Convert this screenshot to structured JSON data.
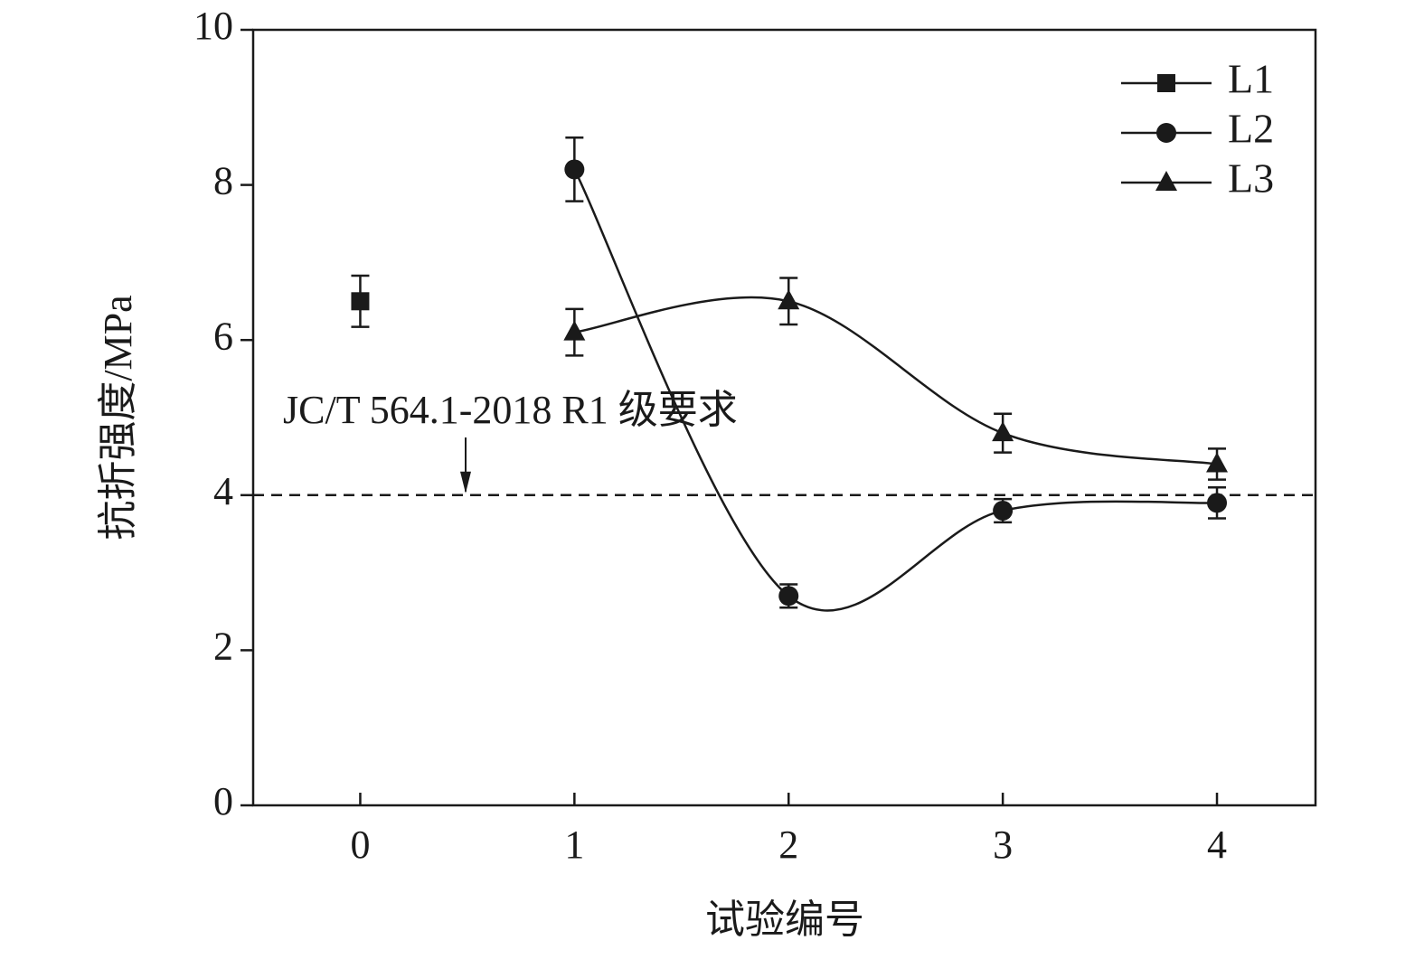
{
  "chart_data": {
    "type": "line",
    "x_label": "试验编号",
    "y_label": "抗折强度/MPa",
    "x": [
      0,
      1,
      2,
      3,
      4
    ],
    "series": [
      {
        "name": "L1",
        "color": "#1a1a1a",
        "marker": "square",
        "values": [
          6.5,
          null,
          null,
          null,
          null
        ],
        "errors": [
          0.33,
          null,
          null,
          null,
          null
        ]
      },
      {
        "name": "L2",
        "color": "#1a1a1a",
        "marker": "circle",
        "values": [
          null,
          8.2,
          2.7,
          3.8,
          3.9
        ],
        "errors": [
          null,
          0.41,
          0.15,
          0.15,
          0.2
        ]
      },
      {
        "name": "L3",
        "color": "#1a1a1a",
        "marker": "triangle",
        "values": [
          null,
          6.1,
          6.5,
          4.8,
          4.4
        ],
        "errors": [
          null,
          0.3,
          0.3,
          0.25,
          0.2
        ]
      }
    ],
    "reference_line": {
      "value": 4,
      "label": "JC/T 564.1-2018 R1 级要求"
    },
    "xlim": [
      -0.5,
      4.46
    ],
    "ylim": [
      0,
      10
    ],
    "xticks": [
      0,
      1,
      2,
      3,
      4
    ],
    "yticks": [
      0,
      2,
      4,
      6,
      8,
      10
    ],
    "smooth": true,
    "legend": "upper right"
  }
}
